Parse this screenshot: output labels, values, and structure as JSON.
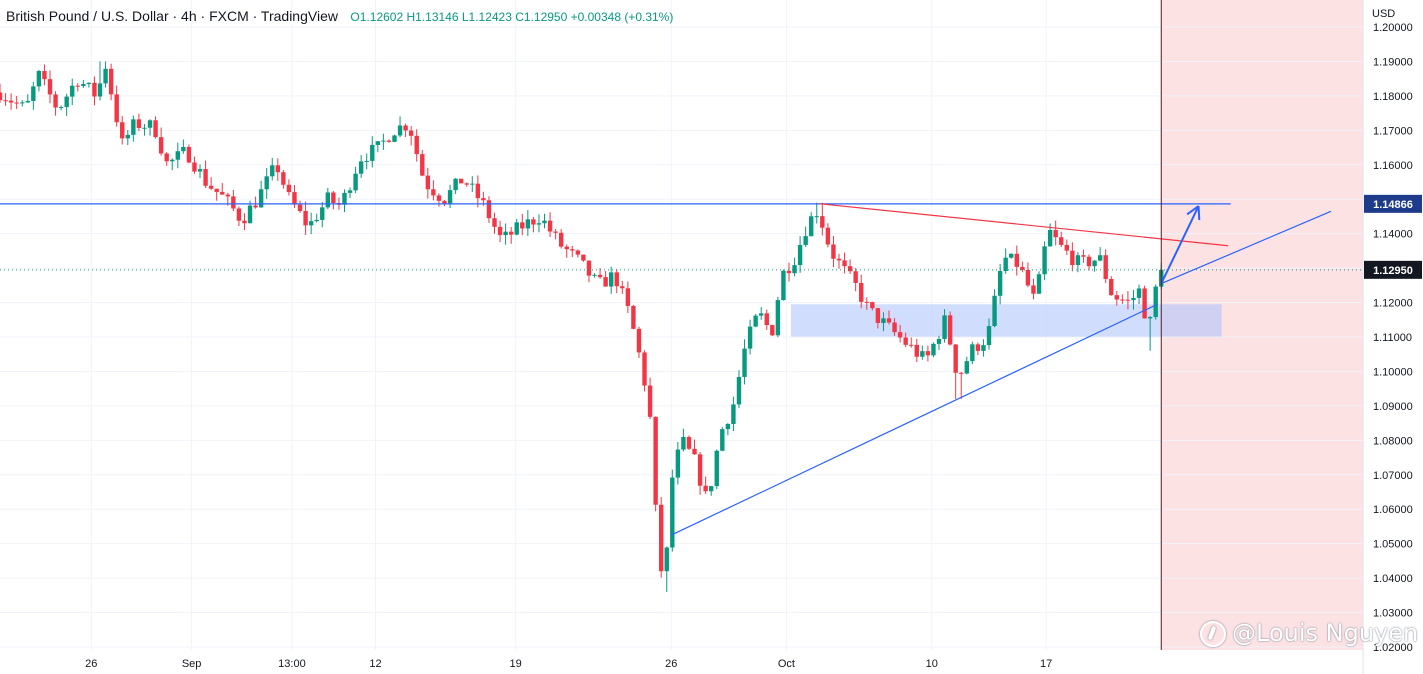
{
  "header": {
    "title": "British Pound / U.S. Dollar · 4h · FXCM · TradingView",
    "ohlc": "O1.12602  H1.13146  L1.12423  C1.12950  +0.00348 (+0.31%)"
  },
  "watermark": "@Louis Nguyen",
  "colors": {
    "up": "#089981",
    "down": "#f23645",
    "blue_line": "#2962ff",
    "red_line": "#f23645",
    "zone_fill": "#b2c6fb",
    "future_fill": "#fde2e4",
    "last_price_label": "#131722",
    "horizontal_label": "#1e3a8a"
  },
  "chart_data": {
    "type": "candlestick",
    "currency_label": "USD",
    "ylim": [
      1.02,
      1.2
    ],
    "y_ticks": [
      "1.20000",
      "1.19000",
      "1.18000",
      "1.17000",
      "1.16000",
      "1.15000",
      "1.14000",
      "1.13000",
      "1.12000",
      "1.11000",
      "1.10000",
      "1.09000",
      "1.08000",
      "1.07000",
      "1.06000",
      "1.05000",
      "1.04000",
      "1.03000",
      "1.02000"
    ],
    "x_ticks": [
      {
        "label": "26",
        "pos": 0.071
      },
      {
        "label": "Sep",
        "pos": 0.149
      },
      {
        "label": "13:00",
        "pos": 0.227
      },
      {
        "label": "12",
        "pos": 0.292
      },
      {
        "label": "19",
        "pos": 0.401
      },
      {
        "label": "26",
        "pos": 0.522
      },
      {
        "label": "Oct",
        "pos": 0.6115
      },
      {
        "label": "10",
        "pos": 0.7245
      },
      {
        "label": "17",
        "pos": 0.8135
      }
    ],
    "price_labels": [
      {
        "value": 1.14866,
        "text": "1.14866"
      },
      {
        "value": 1.1295,
        "text": "1.12950"
      }
    ],
    "path_closes": [
      [
        0.0,
        1.181
      ],
      [
        0.02,
        1.176
      ],
      [
        0.03,
        1.186
      ],
      [
        0.045,
        1.176
      ],
      [
        0.06,
        1.185
      ],
      [
        0.075,
        1.18
      ],
      [
        0.082,
        1.189
      ],
      [
        0.095,
        1.166
      ],
      [
        0.105,
        1.172
      ],
      [
        0.12,
        1.171
      ],
      [
        0.13,
        1.16
      ],
      [
        0.145,
        1.164
      ],
      [
        0.16,
        1.155
      ],
      [
        0.175,
        1.15
      ],
      [
        0.188,
        1.144
      ],
      [
        0.2,
        1.15
      ],
      [
        0.215,
        1.16
      ],
      [
        0.225,
        1.15
      ],
      [
        0.24,
        1.142
      ],
      [
        0.255,
        1.15
      ],
      [
        0.265,
        1.148
      ],
      [
        0.28,
        1.162
      ],
      [
        0.295,
        1.165
      ],
      [
        0.305,
        1.17
      ],
      [
        0.318,
        1.172
      ],
      [
        0.33,
        1.155
      ],
      [
        0.345,
        1.15
      ],
      [
        0.36,
        1.156
      ],
      [
        0.375,
        1.149
      ],
      [
        0.39,
        1.138
      ],
      [
        0.405,
        1.142
      ],
      [
        0.42,
        1.145
      ],
      [
        0.435,
        1.137
      ],
      [
        0.45,
        1.132
      ],
      [
        0.465,
        1.125
      ],
      [
        0.478,
        1.128
      ],
      [
        0.49,
        1.116
      ],
      [
        0.5,
        1.1
      ],
      [
        0.506,
        1.085
      ],
      [
        0.512,
        1.045
      ],
      [
        0.517,
        1.039
      ],
      [
        0.522,
        1.068
      ],
      [
        0.53,
        1.08
      ],
      [
        0.54,
        1.074
      ],
      [
        0.55,
        1.062
      ],
      [
        0.56,
        1.082
      ],
      [
        0.57,
        1.09
      ],
      [
        0.58,
        1.108
      ],
      [
        0.59,
        1.117
      ],
      [
        0.6,
        1.111
      ],
      [
        0.608,
        1.128
      ],
      [
        0.618,
        1.133
      ],
      [
        0.628,
        1.143
      ],
      [
        0.636,
        1.147
      ],
      [
        0.646,
        1.135
      ],
      [
        0.655,
        1.13
      ],
      [
        0.665,
        1.125
      ],
      [
        0.675,
        1.118
      ],
      [
        0.69,
        1.113
      ],
      [
        0.705,
        1.108
      ],
      [
        0.72,
        1.103
      ],
      [
        0.735,
        1.115
      ],
      [
        0.745,
        1.098
      ],
      [
        0.755,
        1.106
      ],
      [
        0.768,
        1.11
      ],
      [
        0.78,
        1.133
      ],
      [
        0.792,
        1.131
      ],
      [
        0.805,
        1.12
      ],
      [
        0.815,
        1.141
      ],
      [
        0.825,
        1.136
      ],
      [
        0.84,
        1.131
      ],
      [
        0.855,
        1.133
      ],
      [
        0.865,
        1.122
      ],
      [
        0.878,
        1.12
      ],
      [
        0.887,
        1.124
      ],
      [
        0.893,
        1.111
      ],
      [
        0.898,
        1.123
      ],
      [
        0.903,
        1.1295
      ]
    ],
    "extremes": [
      {
        "pos": 0.517,
        "low": 1.036
      },
      {
        "pos": 0.637,
        "high": 1.149
      },
      {
        "pos": 0.745,
        "low": 1.092
      },
      {
        "pos": 0.08,
        "high": 1.19
      },
      {
        "pos": 0.893,
        "low": 1.106
      }
    ],
    "lines": [
      {
        "name": "resistance-horizontal",
        "color": "blue",
        "points": [
          [
            0.0,
            1.14866
          ],
          [
            0.957,
            1.14866
          ]
        ]
      },
      {
        "name": "upper-trendline",
        "color": "red",
        "points": [
          [
            0.637,
            1.1487
          ],
          [
            0.955,
            1.1365
          ]
        ]
      },
      {
        "name": "lower-trendline",
        "color": "blue",
        "points": [
          [
            0.522,
            1.0525
          ],
          [
            0.9,
            1.1195
          ]
        ]
      },
      {
        "name": "lower-trendline-extension",
        "color": "blue",
        "points": [
          [
            0.903,
            1.1255
          ],
          [
            1.035,
            1.1465
          ]
        ]
      },
      {
        "name": "projection-arrow",
        "color": "blue",
        "points": [
          [
            0.903,
            1.1255
          ],
          [
            0.932,
            1.148
          ]
        ]
      }
    ],
    "zones": [
      {
        "name": "support-zone",
        "x": [
          0.615,
          0.95
        ],
        "y": [
          1.1101,
          1.1195
        ]
      }
    ],
    "future_region_start": 0.903
  }
}
